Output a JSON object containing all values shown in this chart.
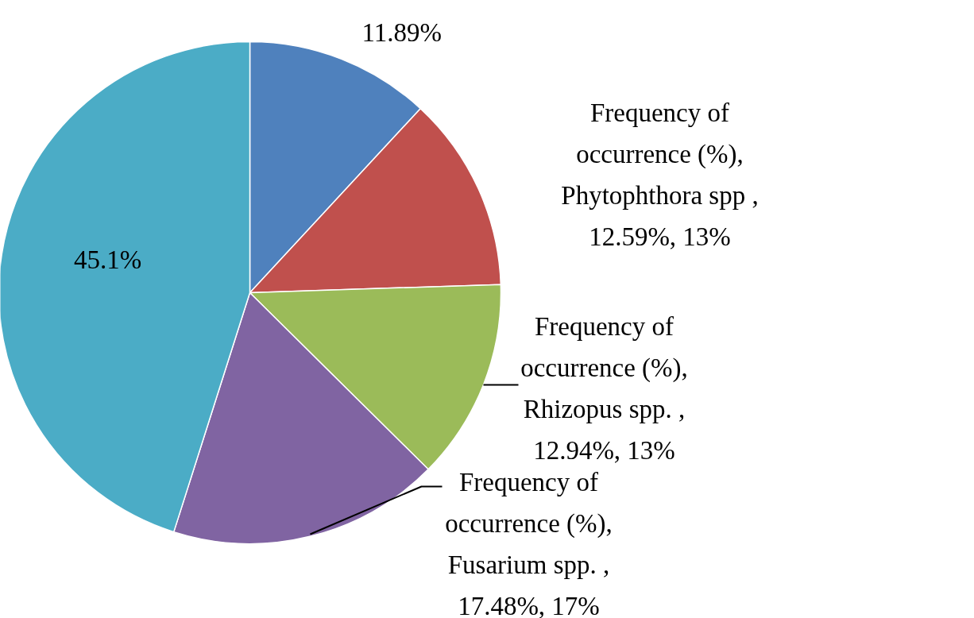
{
  "chart_data": {
    "type": "pie",
    "categories": [
      null,
      null,
      null,
      null,
      null
    ],
    "values": [
      11.89,
      12.59,
      12.94,
      17.48,
      45.1
    ],
    "colors": [
      "#4f81bd",
      "#c0504d",
      "#9bbb59",
      "#8064a2",
      "#4bacc6"
    ],
    "value_labels": [
      "11.89%",
      "Frequency of occurrence (%), Phytophthora spp , 12.59%, 13%",
      "Frequency of occurrence (%), Rhizopus spp. , 12.94%, 13%",
      "Frequency of occurrence (%), Fusarium spp. , 17.48%, 17%",
      "45.1%"
    ]
  }
}
